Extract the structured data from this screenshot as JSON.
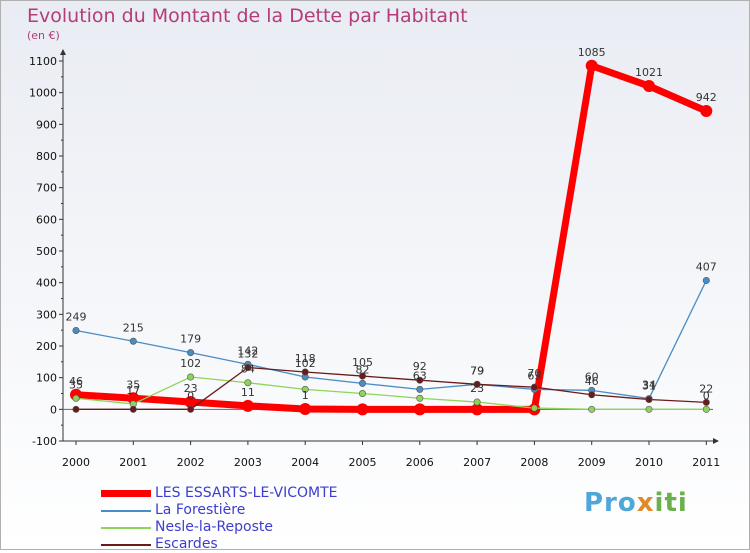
{
  "header": {
    "title": "Evolution du Montant de la Dette par Habitant",
    "subtitle": "(en €)"
  },
  "logo": {
    "text": "Proxiti",
    "parts": [
      "Pro",
      "x",
      "iti"
    ]
  },
  "chart_data": {
    "type": "line",
    "title": "Evolution du Montant de la Dette par Habitant",
    "ylabel": "(en €)",
    "x": [
      "2000",
      "2001",
      "2002",
      "2003",
      "2004",
      "2005",
      "2006",
      "2007",
      "2008",
      "2009",
      "2010",
      "2011"
    ],
    "ylim": [
      -100,
      1100
    ],
    "yticks": [
      -100,
      0,
      100,
      200,
      300,
      400,
      500,
      600,
      700,
      800,
      900,
      1000,
      1100
    ],
    "grid": false,
    "legend": "bottom-left",
    "series": [
      {
        "name": "LES ESSARTS-LE-VICOMTE",
        "color": "#ff0000",
        "values": [
          46,
          35,
          23,
          11,
          1,
          0,
          0,
          0,
          0,
          1085,
          1021,
          942
        ],
        "labels": [
          "46",
          "35",
          "23",
          "11",
          "1",
          "",
          "",
          "",
          "",
          "1085",
          "1021",
          "942"
        ]
      },
      {
        "name": "La Forestière",
        "color": "#4a8cc4",
        "values": [
          249,
          215,
          179,
          142,
          102,
          82,
          63,
          79,
          63,
          60,
          34,
          407
        ],
        "labels": [
          "249",
          "215",
          "179",
          "142",
          "102",
          "82",
          "63",
          "79",
          "63",
          "60",
          "34",
          "407"
        ]
      },
      {
        "name": "Nesle-la-Reposte",
        "color": "#8fd45a",
        "values": [
          35,
          17,
          102,
          84,
          63,
          50,
          35,
          23,
          4,
          0,
          0,
          0
        ],
        "labels": [
          "35",
          "17",
          "102",
          "84",
          "",
          "",
          "",
          "23",
          "",
          "",
          "",
          "0"
        ]
      },
      {
        "name": "Escardes",
        "color": "#6b1a1a",
        "values": [
          0,
          0,
          0,
          132,
          118,
          105,
          92,
          79,
          70,
          46,
          31,
          22
        ],
        "labels": [
          "",
          "",
          "0",
          "132",
          "118",
          "105",
          "92",
          "79",
          "70",
          "46",
          "31",
          "22"
        ]
      }
    ]
  }
}
